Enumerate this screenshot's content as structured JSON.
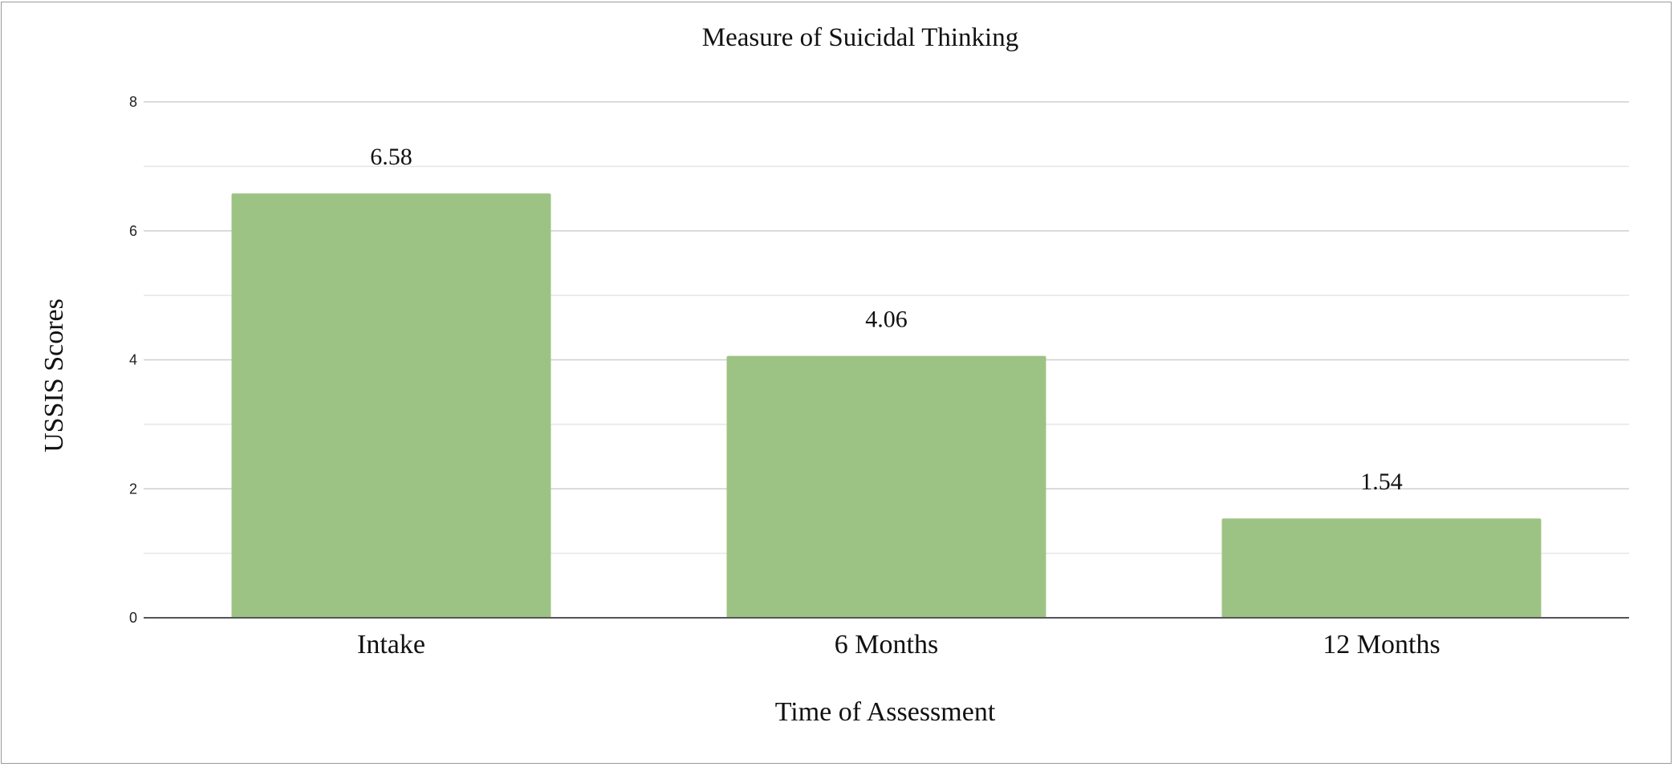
{
  "chart_data": {
    "type": "bar",
    "title": "Measure of Suicidal Thinking",
    "xlabel": "Time of Assessment",
    "ylabel": "USSIS Scores",
    "categories": [
      "Intake",
      "6 Months",
      "12 Months"
    ],
    "values": [
      6.58,
      4.06,
      1.54
    ],
    "data_labels": [
      "6.58",
      "4.06",
      "1.54"
    ],
    "ylim": [
      0,
      8
    ],
    "yticks": [
      0,
      2,
      4,
      6,
      8
    ],
    "ytick_labels": [
      "0",
      "2",
      "4",
      "6",
      "8"
    ],
    "grid": true,
    "minor_grid": true,
    "legend": "none",
    "bar_color": "#9dc384"
  }
}
